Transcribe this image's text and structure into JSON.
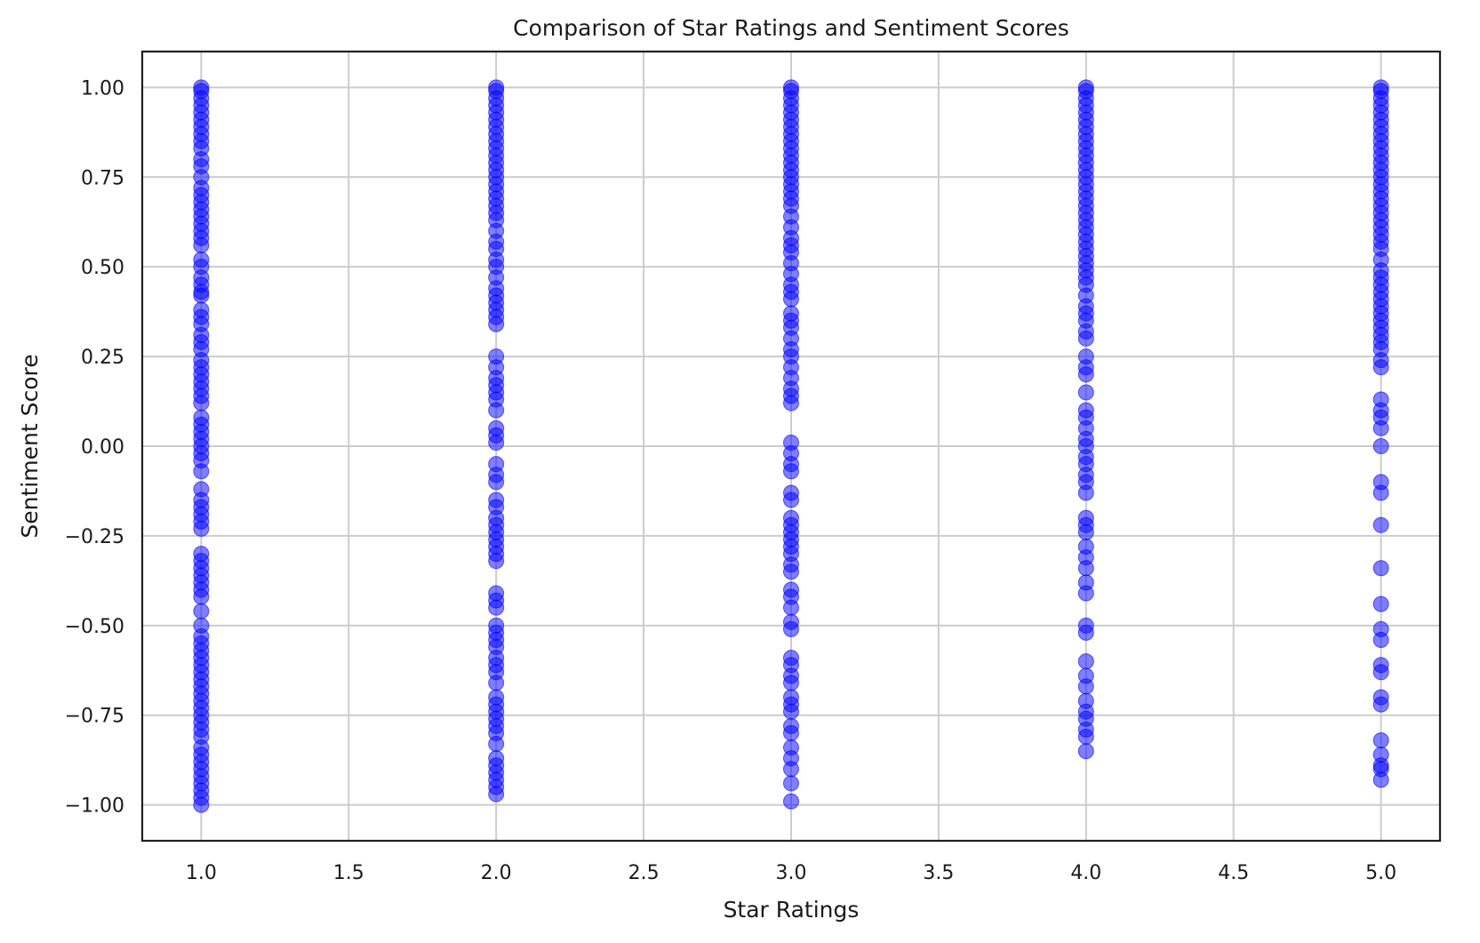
{
  "chart_data": {
    "type": "scatter",
    "title": "Comparison of Star Ratings and Sentiment Scores",
    "xlabel": "Star Ratings",
    "ylabel": "Sentiment Score",
    "xlim": [
      0.8,
      5.2
    ],
    "ylim": [
      -1.1,
      1.1
    ],
    "xticks": [
      "1.0",
      "1.5",
      "2.0",
      "2.5",
      "3.0",
      "3.5",
      "4.0",
      "4.5",
      "5.0"
    ],
    "xtick_values": [
      1.0,
      1.5,
      2.0,
      2.5,
      3.0,
      3.5,
      4.0,
      4.5,
      5.0
    ],
    "yticks": [
      "1.00",
      "0.75",
      "0.50",
      "0.25",
      "0.00",
      "−0.25",
      "−0.50",
      "−0.75",
      "−1.00"
    ],
    "ytick_values": [
      1.0,
      0.75,
      0.5,
      0.25,
      0.0,
      -0.25,
      -0.5,
      -0.75,
      -1.0
    ],
    "grid": true,
    "marker_color": "#0000ff",
    "marker_alpha": 0.5,
    "series": [
      {
        "x": 1.0,
        "y": [
          1.0,
          0.99,
          0.97,
          0.95,
          0.93,
          0.91,
          0.89,
          0.87,
          0.85,
          0.83,
          0.8,
          0.78,
          0.75,
          0.72,
          0.7,
          0.68,
          0.66,
          0.64,
          0.62,
          0.6,
          0.58,
          0.56,
          0.52,
          0.5,
          0.47,
          0.45,
          0.43,
          0.42,
          0.38,
          0.36,
          0.34,
          0.31,
          0.29,
          0.27,
          0.24,
          0.22,
          0.2,
          0.18,
          0.16,
          0.14,
          0.12,
          0.08,
          0.06,
          0.04,
          0.02,
          0.0,
          -0.02,
          -0.04,
          -0.07,
          -0.12,
          -0.15,
          -0.17,
          -0.19,
          -0.21,
          -0.23,
          -0.3,
          -0.32,
          -0.34,
          -0.36,
          -0.38,
          -0.4,
          -0.42,
          -0.46,
          -0.5,
          -0.53,
          -0.55,
          -0.57,
          -0.59,
          -0.61,
          -0.63,
          -0.65,
          -0.67,
          -0.69,
          -0.71,
          -0.73,
          -0.75,
          -0.77,
          -0.79,
          -0.81,
          -0.84,
          -0.86,
          -0.88,
          -0.9,
          -0.92,
          -0.94,
          -0.96,
          -0.98,
          -1.0
        ]
      },
      {
        "x": 2.0,
        "y": [
          1.0,
          0.99,
          0.97,
          0.95,
          0.93,
          0.91,
          0.89,
          0.87,
          0.85,
          0.83,
          0.81,
          0.79,
          0.77,
          0.75,
          0.73,
          0.71,
          0.69,
          0.67,
          0.65,
          0.63,
          0.6,
          0.57,
          0.55,
          0.52,
          0.5,
          0.47,
          0.44,
          0.42,
          0.4,
          0.38,
          0.36,
          0.34,
          0.25,
          0.22,
          0.19,
          0.17,
          0.15,
          0.13,
          0.1,
          0.05,
          0.03,
          0.01,
          -0.05,
          -0.08,
          -0.1,
          -0.15,
          -0.17,
          -0.2,
          -0.22,
          -0.24,
          -0.26,
          -0.28,
          -0.3,
          -0.32,
          -0.41,
          -0.43,
          -0.45,
          -0.5,
          -0.52,
          -0.54,
          -0.56,
          -0.59,
          -0.61,
          -0.63,
          -0.66,
          -0.7,
          -0.72,
          -0.74,
          -0.76,
          -0.78,
          -0.8,
          -0.83,
          -0.87,
          -0.89,
          -0.91,
          -0.93,
          -0.95,
          -0.97
        ]
      },
      {
        "x": 3.0,
        "y": [
          1.0,
          0.99,
          0.97,
          0.95,
          0.93,
          0.91,
          0.89,
          0.87,
          0.85,
          0.83,
          0.81,
          0.79,
          0.77,
          0.75,
          0.73,
          0.71,
          0.69,
          0.67,
          0.64,
          0.61,
          0.58,
          0.56,
          0.54,
          0.51,
          0.48,
          0.45,
          0.43,
          0.41,
          0.37,
          0.35,
          0.33,
          0.3,
          0.27,
          0.25,
          0.22,
          0.19,
          0.16,
          0.14,
          0.12,
          0.01,
          -0.02,
          -0.05,
          -0.07,
          -0.13,
          -0.15,
          -0.2,
          -0.22,
          -0.24,
          -0.26,
          -0.28,
          -0.3,
          -0.33,
          -0.35,
          -0.4,
          -0.42,
          -0.45,
          -0.49,
          -0.51,
          -0.59,
          -0.61,
          -0.64,
          -0.66,
          -0.7,
          -0.72,
          -0.74,
          -0.78,
          -0.8,
          -0.84,
          -0.87,
          -0.9,
          -0.94,
          -0.99
        ]
      },
      {
        "x": 4.0,
        "y": [
          1.0,
          0.99,
          0.97,
          0.95,
          0.93,
          0.91,
          0.89,
          0.87,
          0.85,
          0.83,
          0.81,
          0.79,
          0.77,
          0.75,
          0.73,
          0.71,
          0.69,
          0.67,
          0.65,
          0.63,
          0.61,
          0.59,
          0.57,
          0.55,
          0.53,
          0.51,
          0.49,
          0.47,
          0.45,
          0.42,
          0.39,
          0.37,
          0.35,
          0.32,
          0.3,
          0.25,
          0.22,
          0.2,
          0.15,
          0.1,
          0.08,
          0.05,
          0.02,
          0.0,
          -0.03,
          -0.05,
          -0.08,
          -0.1,
          -0.13,
          -0.2,
          -0.22,
          -0.24,
          -0.28,
          -0.31,
          -0.34,
          -0.38,
          -0.41,
          -0.5,
          -0.52,
          -0.6,
          -0.64,
          -0.67,
          -0.71,
          -0.74,
          -0.76,
          -0.79,
          -0.81,
          -0.85
        ]
      },
      {
        "x": 5.0,
        "y": [
          1.0,
          0.99,
          0.97,
          0.95,
          0.93,
          0.91,
          0.89,
          0.87,
          0.85,
          0.83,
          0.81,
          0.79,
          0.77,
          0.75,
          0.73,
          0.71,
          0.69,
          0.67,
          0.65,
          0.63,
          0.61,
          0.59,
          0.57,
          0.55,
          0.52,
          0.49,
          0.47,
          0.45,
          0.43,
          0.41,
          0.39,
          0.37,
          0.35,
          0.33,
          0.31,
          0.29,
          0.27,
          0.24,
          0.22,
          0.13,
          0.1,
          0.08,
          0.05,
          0.0,
          -0.1,
          -0.13,
          -0.22,
          -0.34,
          -0.44,
          -0.51,
          -0.54,
          -0.61,
          -0.63,
          -0.7,
          -0.72,
          -0.82,
          -0.86,
          -0.89,
          -0.9,
          -0.93
        ]
      }
    ]
  }
}
